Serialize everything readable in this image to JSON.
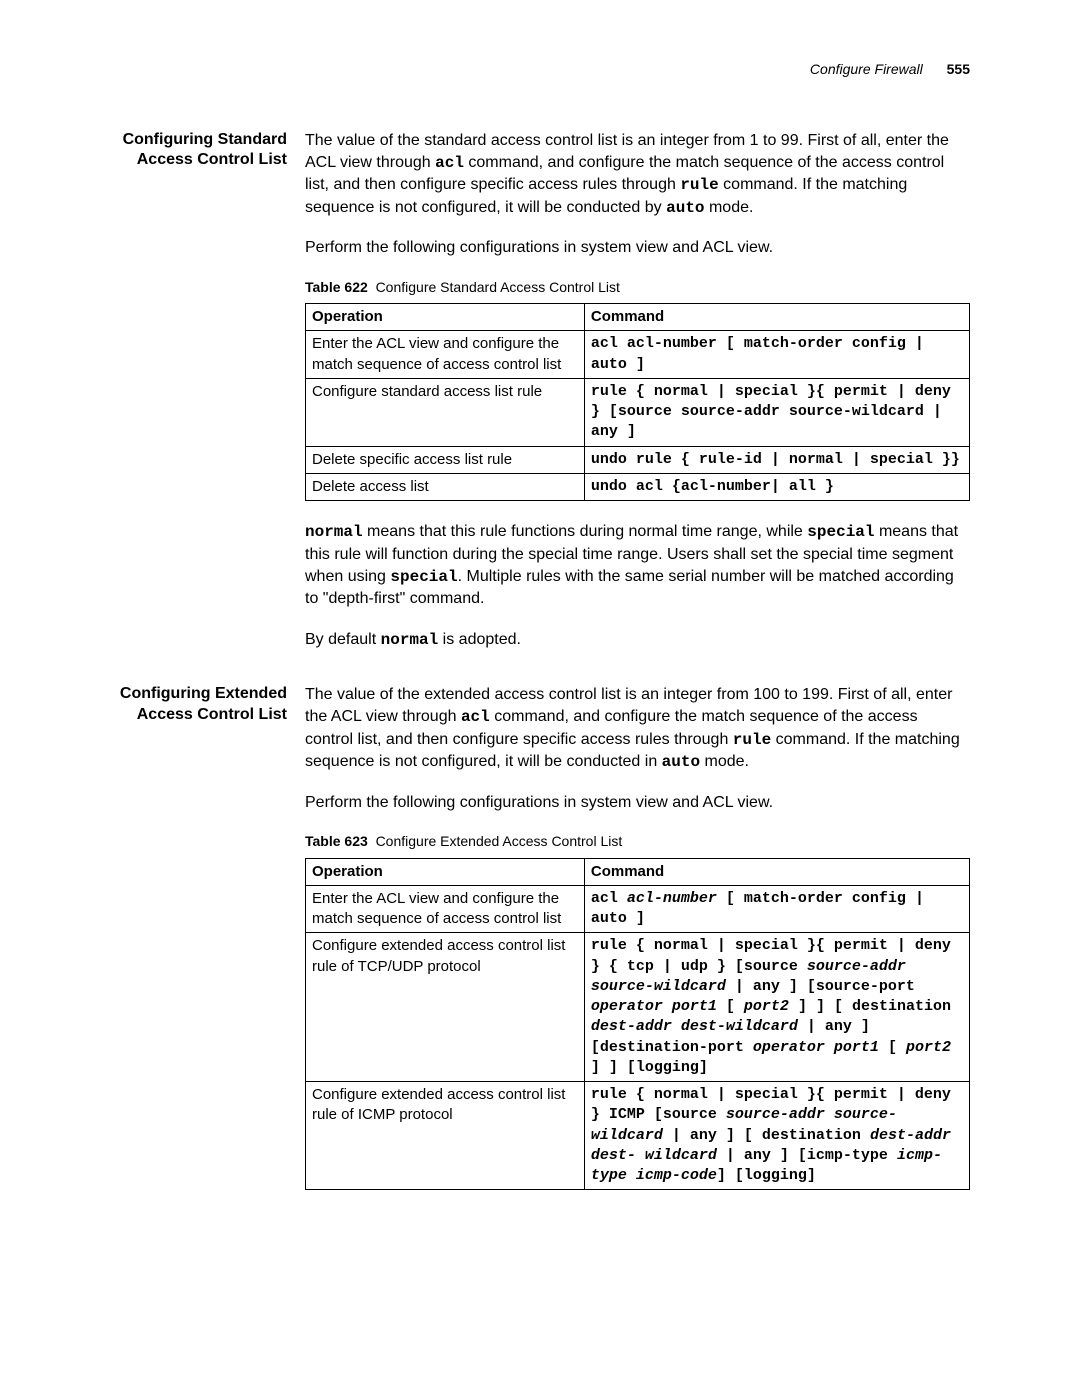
{
  "header": {
    "title": "Configure Firewall",
    "page": "555"
  },
  "section1": {
    "heading": "Configuring Standard Access Control List",
    "para1_pre": "The value of the standard access control list is an integer from 1 to 99. First of all, enter the ACL view through ",
    "para1_code1": "acl",
    "para1_mid1": " command, and configure the match sequence of the access control list, and then configure specific access rules through ",
    "para1_code2": "rule",
    "para1_mid2": " command. If the matching sequence is not configured, it will be conducted by ",
    "para1_code3": "auto",
    "para1_post": " mode.",
    "para2": "Perform the following configurations in system view and ACL view.",
    "table": {
      "label": "Table 622",
      "caption": "Configure Standard Access Control List",
      "col1": "Operation",
      "col2": "Command",
      "rows": [
        {
          "op": "Enter the ACL view and configure the match sequence of access control list",
          "cmd": "acl acl-number [ match-order config | auto ]"
        },
        {
          "op": "Configure standard access list rule",
          "cmd": "rule { normal | special }{ permit | deny } [source source-addr source-wildcard | any ]"
        },
        {
          "op": "Delete specific access list rule",
          "cmd": "undo rule { rule-id | normal | special }}"
        },
        {
          "op": "Delete access list",
          "cmd": "undo acl {acl-number| all }"
        }
      ]
    },
    "para3_code1": "normal",
    "para3_mid1": " means that this rule functions during normal time range, while ",
    "para3_code2": "special",
    "para3_mid2": " means that this rule will function during the special time range. Users shall set the special time segment when using ",
    "para3_code3": "special",
    "para3_post": ". Multiple rules with the same serial number will be matched according to \"depth-first\" command.",
    "para4_pre": "By default ",
    "para4_code": "normal",
    "para4_post": " is adopted."
  },
  "section2": {
    "heading": "Configuring Extended Access Control List",
    "para1_pre": "The value of the extended access control list is an integer from 100 to 199. First of all, enter the ACL view through ",
    "para1_code1": "acl",
    "para1_mid1": " command, and configure the match sequence of the access control list, and then configure specific access rules through ",
    "para1_code2": "rule",
    "para1_mid2": " command. If the matching sequence is not configured, it will be conducted in ",
    "para1_code3": "auto",
    "para1_post": " mode.",
    "para2": "Perform the following configurations in system view and ACL view.",
    "table": {
      "label": "Table 623",
      "caption": "Configure Extended Access Control List",
      "col1": "Operation",
      "col2": "Command",
      "rows": [
        {
          "op": "Enter the ACL view and configure the match sequence of access control list",
          "cmd_html": "acl <span class='italic'>acl-number</span> [ match-order config | auto ]"
        },
        {
          "op": "Configure extended access control list rule of TCP/UDP protocol",
          "cmd_html": "rule { normal | special }{ permit | deny }  { tcp | udp } [source <span class='italic'>source-addr source-wildcard</span> | any ] [source-port <span class='italic'>operator port1</span> [ <span class='italic'>port2</span> ] ] [ destination <span class='italic'>dest-addr dest-wildcard</span> | any ] [destination-port <span class='italic'>operator port1</span> [ <span class='italic'>port2</span> ] ] [logging]"
        },
        {
          "op": "Configure extended access control list rule of ICMP protocol",
          "cmd_html": "rule { normal | special }{ permit | deny } ICMP [source  <span class='italic'>source-addr source-wildcard</span> | any ] [ destination <span class='italic'>dest-addr dest- wildcard</span> | any ] [icmp-type <span class='italic'>icmp-type icmp-code</span>] [logging]"
        }
      ]
    }
  }
}
